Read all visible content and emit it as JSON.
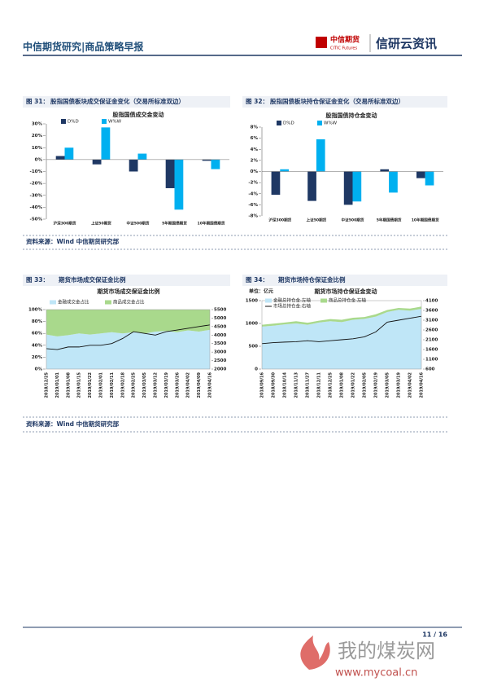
{
  "header": {
    "title": "中信期货研究|商品策略早报",
    "logo_cn": "中信期货",
    "logo_en": "CITIC Futures",
    "brand": "信研云资讯"
  },
  "figures": [
    {
      "label": "图 31：",
      "caption": "股指国债板块成交保证金变化（交易所标准双边）"
    },
    {
      "label": "图 32：",
      "caption": "股指国债板块持仓保证金变化（交易所标准双边）"
    },
    {
      "label": "图 33：",
      "caption": "期货市场成交保证金比例"
    },
    {
      "label": "图 34：",
      "caption": "期货市场持仓保证金比例"
    }
  ],
  "sources": [
    "资料来源：Wind 中信期货研究部",
    "资料来源：Wind 中信期货研究部"
  ],
  "chart_data": [
    {
      "type": "bar",
      "title": "股指国债成交金变动",
      "categories": [
        "沪深300期货",
        "上证50期货",
        "中证500期货",
        "5年期国债期货",
        "10年期国债期货"
      ],
      "series": [
        {
          "name": "D%D",
          "color": "#1f3864",
          "values": [
            3,
            -4,
            -10,
            -24,
            -1
          ]
        },
        {
          "name": "W%W",
          "color": "#00b0f0",
          "values": [
            10,
            27,
            5,
            -42,
            -8
          ]
        }
      ],
      "ylim": [
        -50,
        30
      ],
      "yticks": [
        {
          "value": -50,
          "label": "-50%"
        },
        {
          "value": -40,
          "label": "-40%"
        },
        {
          "value": -30,
          "label": "-30%"
        },
        {
          "value": -20,
          "label": "-20%"
        },
        {
          "value": -10,
          "label": "-10%"
        },
        {
          "value": 0,
          "label": "0%"
        },
        {
          "value": 10,
          "label": "10%"
        },
        {
          "value": 20,
          "label": "20%"
        },
        {
          "value": 30,
          "label": "30%"
        }
      ]
    },
    {
      "type": "bar",
      "title": "股指国债持仓金变动",
      "categories": [
        "沪深300期货",
        "上证50期货",
        "中证500期货",
        "5年期国债期货",
        "10年期国债期货"
      ],
      "series": [
        {
          "name": "D%D",
          "color": "#1f3864",
          "values": [
            -4.2,
            -5.3,
            -6,
            0.4,
            -1.2
          ]
        },
        {
          "name": "W%W",
          "color": "#00b0f0",
          "values": [
            0.4,
            5.8,
            -5.4,
            -3.8,
            -2.5
          ]
        }
      ],
      "ylim": [
        -8,
        8
      ],
      "yticks": [
        {
          "value": -8,
          "label": "-8%"
        },
        {
          "value": -6,
          "label": "-6%"
        },
        {
          "value": -4,
          "label": "-4%"
        },
        {
          "value": -2,
          "label": "-2%"
        },
        {
          "value": 0,
          "label": "0%"
        },
        {
          "value": 2,
          "label": "2%"
        },
        {
          "value": 4,
          "label": "4%"
        },
        {
          "value": 6,
          "label": "6%"
        },
        {
          "value": 8,
          "label": "8%"
        }
      ]
    },
    {
      "type": "area",
      "title": "期货市场成交保证金比例",
      "categories": [
        "2018/12/25",
        "2019/01/01",
        "2019/01/08",
        "2019/01/15",
        "2019/01/22",
        "2019/02/01",
        "2019/02/11",
        "2019/02/18",
        "2019/02/25",
        "2019/03/05",
        "2019/03/12",
        "2019/03/19",
        "2019/03/26",
        "2019/04/02",
        "2019/04/09",
        "2019/04/16"
      ],
      "series": [
        {
          "name": "金融成交金占比",
          "color": "#bfe6f7",
          "values": [
            58,
            55,
            57,
            60,
            58,
            60,
            62,
            60,
            62,
            60,
            63,
            64,
            62,
            65,
            63,
            66
          ]
        },
        {
          "name": "商品成交金占比",
          "color": "#a9d98c",
          "values": [
            42,
            45,
            43,
            40,
            42,
            40,
            38,
            40,
            38,
            40,
            37,
            36,
            38,
            35,
            37,
            34
          ]
        },
        {
          "color": "#111111",
          "axis": "y2",
          "values": [
            3200,
            3150,
            3300,
            3300,
            3400,
            3400,
            3500,
            3800,
            4200,
            4100,
            4000,
            4200,
            4300,
            4400,
            4500,
            4600
          ]
        }
      ],
      "ylim": [
        0,
        100
      ],
      "yticks": [
        {
          "value": 0,
          "label": "0%"
        },
        {
          "value": 20,
          "label": "20%"
        },
        {
          "value": 40,
          "label": "40%"
        },
        {
          "value": 60,
          "label": "60%"
        },
        {
          "value": 80,
          "label": "80%"
        },
        {
          "value": 100,
          "label": "100%"
        }
      ],
      "y2lim": [
        2000,
        5500
      ],
      "y2ticks": [
        2000,
        2500,
        3000,
        3500,
        4000,
        4500,
        5000,
        5500
      ]
    },
    {
      "type": "area",
      "title": "期货市场持仓保证金变动",
      "y_label": "单位：亿元",
      "categories": [
        "2018/09/16",
        "2018/09/30",
        "2018/10/14",
        "2018/11/13",
        "2018/11/27",
        "2018/12/11",
        "2018/12/25",
        "2019/01/08",
        "2019/01/22",
        "2019/02/05",
        "2019/02/19",
        "2019/03/05",
        "2019/03/19",
        "2019/04/02",
        "2019/04/16"
      ],
      "series": [
        {
          "name": "金融总持仓金:左轴",
          "color": "#bfe6f7",
          "values": [
            930,
            950,
            980,
            1000,
            970,
            1020,
            1050,
            1030,
            1080,
            1100,
            1150,
            1250,
            1300,
            1280,
            1320
          ]
        },
        {
          "name": "商品总持仓金:左轴",
          "color": "#a9d98c",
          "values": [
            40,
            45,
            40,
            50,
            45,
            40,
            45,
            50,
            45,
            40,
            50,
            45,
            40,
            45,
            50
          ]
        },
        {
          "name": "市场总持仓金:右轴",
          "color": "#111111",
          "axis": "y2",
          "values": [
            1900,
            1950,
            1980,
            2000,
            2050,
            2000,
            2050,
            2100,
            2150,
            2250,
            2500,
            3000,
            3100,
            3200,
            3300
          ]
        }
      ],
      "ylim": [
        0,
        1500
      ],
      "yticks": [
        0,
        500,
        1000,
        1500
      ],
      "y2lim": [
        600,
        4100
      ],
      "y2ticks": [
        600,
        1100,
        1600,
        2100,
        2600,
        3100,
        3600,
        4100
      ]
    }
  ],
  "footer": {
    "page": "11 / 16"
  },
  "watermark": {
    "text": "我的煤炭网",
    "url": "www.mycoal.cn"
  }
}
